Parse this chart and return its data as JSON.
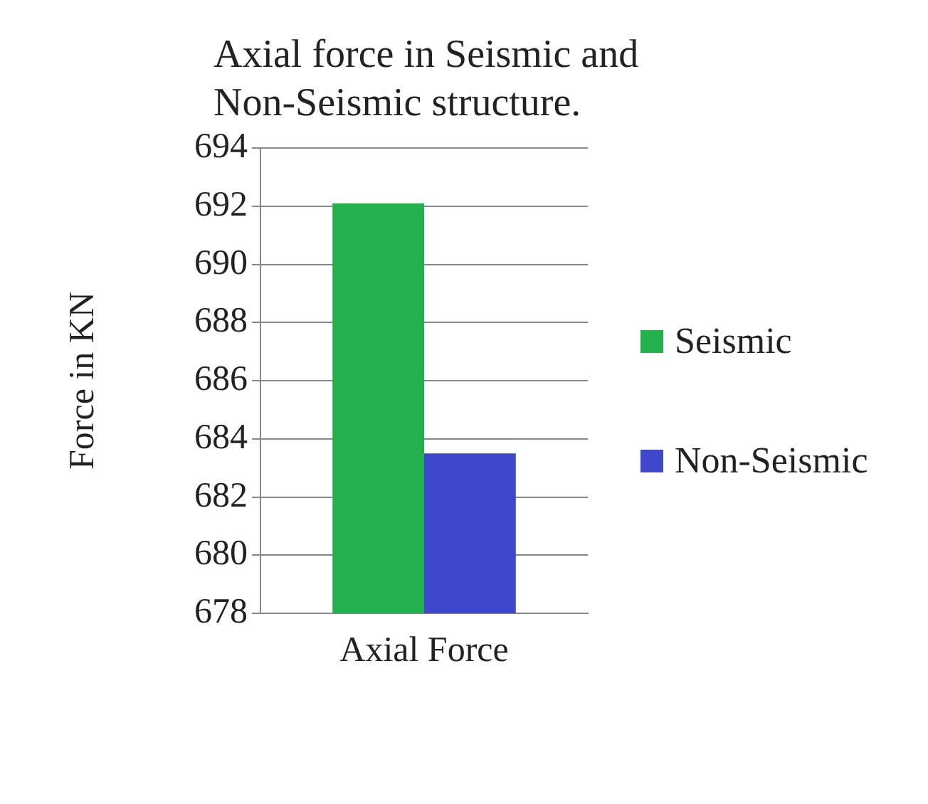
{
  "chart_data": {
    "type": "bar",
    "title": "Axial force in Seismic and Non-Seismic structure.",
    "ylabel": "Force in KN",
    "categories": [
      "Axial Force"
    ],
    "series": [
      {
        "name": "Seismic",
        "color": "#22b14c",
        "values": [
          692.1
        ]
      },
      {
        "name": "Non-Seismic",
        "color": "#3f48cc",
        "values": [
          683.5
        ]
      }
    ],
    "ylim": [
      678,
      694
    ],
    "yticks": [
      678,
      680,
      682,
      684,
      686,
      688,
      690,
      692,
      694
    ],
    "grid": "y",
    "legend": "right"
  }
}
